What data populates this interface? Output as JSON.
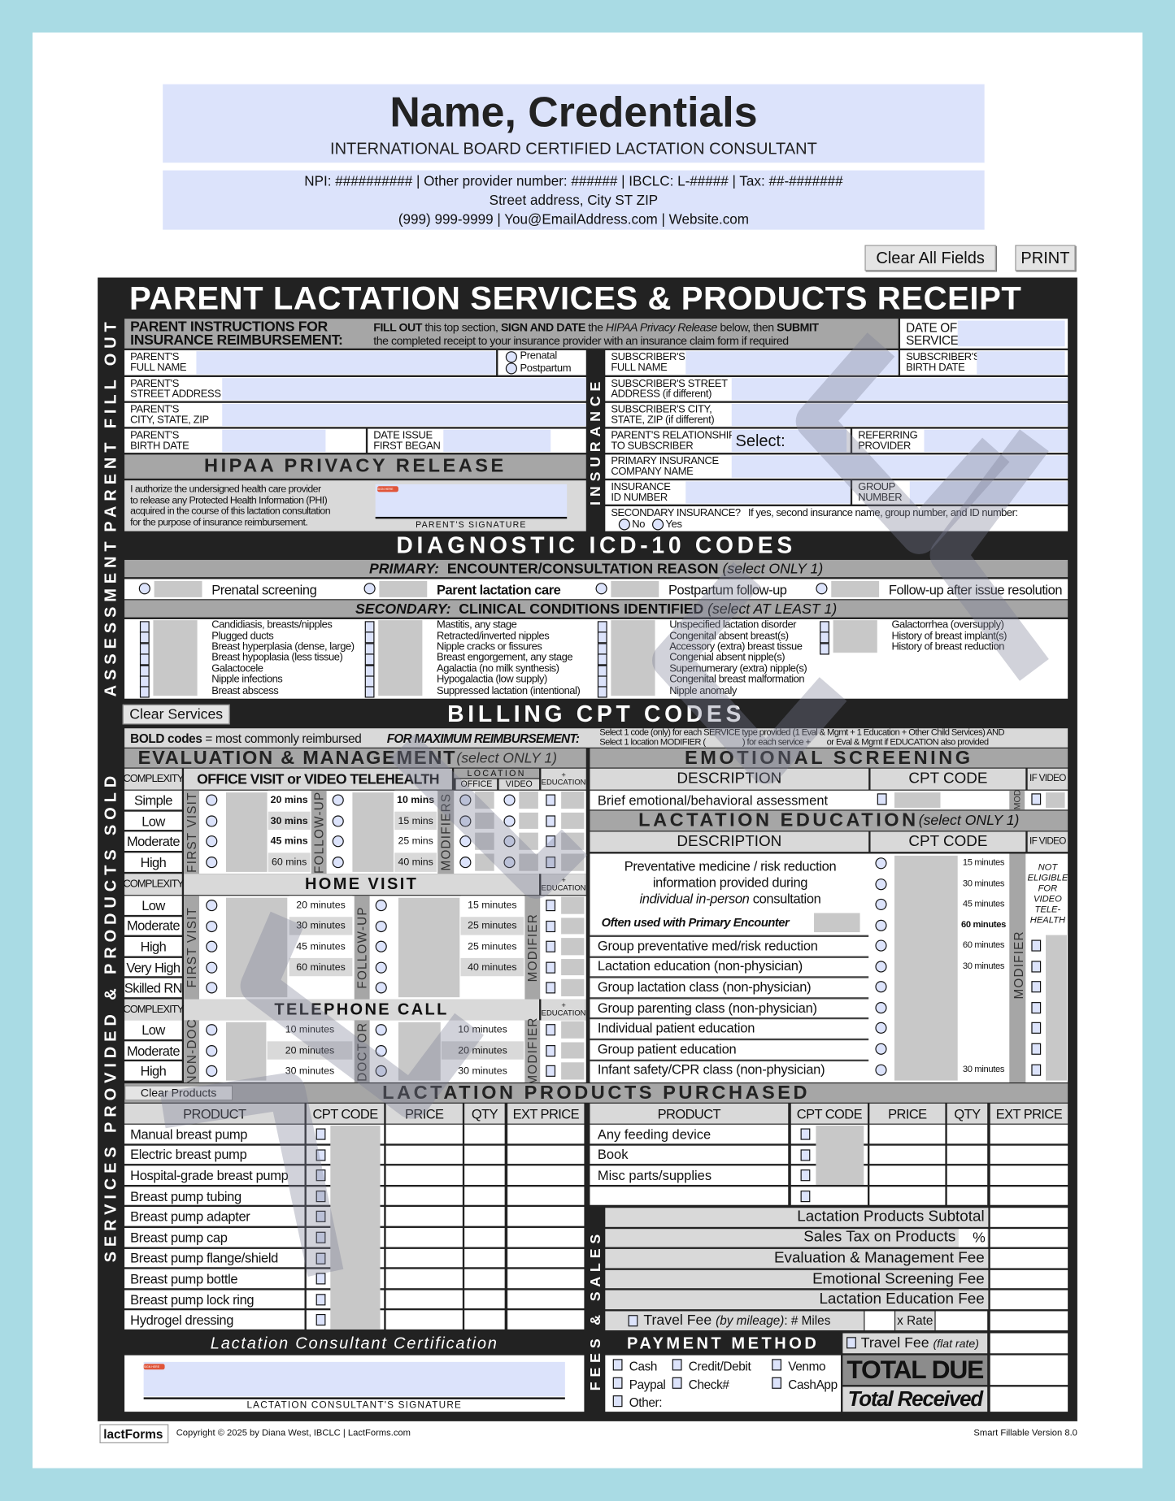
{
  "header": {
    "name": "Name, Credentials",
    "title": "INTERNATIONAL BOARD CERTIFIED LACTATION CONSULTANT",
    "line1": "NPI: ########## | Other provider number: ###### | IBCLC: L-##### | Tax: ##-#######",
    "line2": "Street address, City ST ZIP",
    "line3": "(999) 999-9999 | You@EmailAddress.com | Website.com"
  },
  "toolbar": {
    "clear_all": "Clear All Fields",
    "print": "PRINT"
  },
  "form": {
    "title": "PARENT LACTATION SERVICES & PRODUCTS RECEIPT",
    "side_labels": {
      "parent": "PARENT FILL OUT",
      "assessment": "ASSESSMENT",
      "services": "SERVICES PROVIDED & PRODUCTS SOLD",
      "insurance": "INSURANCE",
      "fees": "FEES & SALES"
    }
  },
  "parent": {
    "instructions_heading": "PARENT INSTRUCTIONS FOR\nINSURANCE REIMBURSEMENT:",
    "instructions": [
      "FILL OUT",
      " this top section, ",
      "SIGN AND DATE",
      " the ",
      "HIPAA Privacy Release",
      " below, then ",
      "SUBMIT",
      "the completed receipt to your insurance provider with an insurance claim form if required"
    ],
    "date_of_service": "DATE OF\nSERVICE",
    "full_name": "PARENT'S\nFULL NAME",
    "prenatal": "Prenatal",
    "postpartum": "Postpartum",
    "street": "PARENT'S\nSTREET ADDRESS",
    "city": "PARENT'S\nCITY, STATE, ZIP",
    "birth_date": "PARENT'S\nBIRTH DATE",
    "issue_began": "DATE ISSUE\nFIRST BEGAN",
    "hipaa_title": "HIPAA PRIVACY RELEASE",
    "hipaa_text": "I authorize the undersigned health care provider\nto release any Protected Health Information (PHI)\nacquired in the course of this lactation consultation\nfor the purpose of insurance reimbursement.",
    "signature_label": "PARENT'S SIGNATURE",
    "sign_here": "SIGN HERE"
  },
  "insurance": {
    "subscriber_name": "SUBSCRIBER'S\nFULL NAME",
    "subscriber_birth": "SUBSCRIBER'S\nBIRTH DATE",
    "subscriber_street": "SUBSCRIBER'S STREET\nADDRESS (if different)",
    "subscriber_city": "SUBSCRIBER'S CITY,\nSTATE, ZIP (if different)",
    "relationship": "PARENT'S RELATIONSHIP\nTO SUBSCRIBER",
    "relationship_value": "Select:",
    "referring": "REFERRING\nPROVIDER",
    "company": "PRIMARY INSURANCE\nCOMPANY NAME",
    "id_number": "INSURANCE\nID NUMBER",
    "group_number": "GROUP\nNUMBER",
    "secondary": "SECONDARY INSURANCE?   If yes, second insurance name, group number, and ID number:",
    "no": "No",
    "yes": "Yes"
  },
  "icd": {
    "title": "DIAGNOSTIC ICD-10 CODES",
    "primary_header": [
      "PRIMARY:",
      "  ENCOUNTER/CONSULTATION REASON ",
      "(select ONLY 1)"
    ],
    "primary_options": [
      "Prenatal screening",
      "Parent lactation care",
      "Postpartum follow-up",
      "Follow-up after issue resolution"
    ],
    "secondary_header": [
      "SECONDARY:",
      "  CLINICAL CONDITIONS IDENTIFIED ",
      "(select AT LEAST 1)"
    ],
    "secondary_columns": [
      [
        "Candidiasis, breasts/nipples",
        "Plugged ducts",
        "Breast hyperplasia (dense, large)",
        "Breast hypoplasia (less tissue)",
        "Galactocele",
        "Nipple infections",
        "Breast abscess"
      ],
      [
        "Mastitis, any stage",
        "Retracted/inverted nipples",
        "Nipple cracks or fissures",
        "Breast engorgement, any stage",
        "Agalactia (no milk synthesis)",
        "Hypogalactia (low supply)",
        "Suppressed lactation (intentional)"
      ],
      [
        "Unspecified lactation disorder",
        "Congenital absent breast(s)",
        "Accessory (extra) breast tissue",
        "Congenial absent nipple(s)",
        "Supernumerary (extra) nipple(s)",
        "Congenital breast malformation",
        "Nipple anomaly"
      ],
      [
        "Galactorrhea (oversupply)",
        "History of breast implant(s)",
        "History of breast reduction"
      ]
    ]
  },
  "billing": {
    "title": "BILLING CPT CODES",
    "clear_services": "Clear Services",
    "bold_note": [
      "BOLD codes",
      " = most commonly reimbursed"
    ],
    "max_label": "FOR MAXIMUM REIMBURSEMENT:",
    "max_text_1": "Select 1 code (only) for each SERVICE type provided (1 Eval & Mgmt + 1 Education + Other Child Services) AND",
    "max_text_2": "Select 1 location MODIFIER (                  ) for each service +        or Eval & Mgmt if EDUCATION also provided"
  },
  "em": {
    "title": "EVALUATION & MANAGEMENT",
    "select_note": "(select ONLY 1)",
    "complexity": "COMPLEXITY",
    "education": "+\nEDUCATION",
    "office": {
      "title": "OFFICE VISIT or VIDEO TELEHEALTH",
      "location": "LOCATION",
      "loc_office": "OFFICE",
      "loc_video": "VIDEO",
      "first_label": "FIRST VISIT",
      "follow_label": "FOLLOW-UP",
      "modifiers_label": "MODIFIERS",
      "rows": [
        {
          "complexity": "Simple",
          "first": "20 mins",
          "follow": "10 mins"
        },
        {
          "complexity": "Low",
          "first": "30 mins",
          "follow": "15 mins"
        },
        {
          "complexity": "Moderate",
          "first": "45 mins",
          "follow": "25 mins"
        },
        {
          "complexity": "High",
          "first": "60 mins",
          "follow": "40 mins"
        }
      ]
    },
    "home": {
      "title": "HOME VISIT",
      "first_label": "FIRST VISIT",
      "follow_label": "FOLLOW-UP",
      "modifier_label": "MODIFIER",
      "rows": [
        {
          "complexity": "Low",
          "first": "20 minutes",
          "follow": "15 minutes"
        },
        {
          "complexity": "Moderate",
          "first": "30 minutes",
          "follow": "25 minutes"
        },
        {
          "complexity": "High",
          "first": "45 minutes",
          "follow": "25 minutes"
        },
        {
          "complexity": "Very High",
          "first": "60 minutes",
          "follow": "40 minutes"
        },
        {
          "complexity": "Skilled RN",
          "first": "",
          "follow": ""
        }
      ]
    },
    "phone": {
      "title": "TELEPHONE CALL",
      "first_label": "NON-DOC",
      "follow_label": "DOCTOR",
      "modifier_label": "MODIFIER",
      "rows": [
        {
          "complexity": "Low",
          "first": "10 minutes",
          "follow": "10 minutes"
        },
        {
          "complexity": "Moderate",
          "first": "20 minutes",
          "follow": "20 minutes"
        },
        {
          "complexity": "High",
          "first": "30 minutes",
          "follow": "30 minutes"
        }
      ]
    }
  },
  "emotional": {
    "title": "EMOTIONAL SCREENING",
    "description": "DESCRIPTION",
    "cpt": "CPT CODE",
    "if_video": "IF VIDEO",
    "mod": "MOD",
    "item": "Brief emotional/behavioral assessment"
  },
  "education": {
    "title": "LACTATION EDUCATION",
    "select_note": "(select ONLY 1)",
    "description": "DESCRIPTION",
    "cpt": "CPT CODE",
    "if_video": "IF VIDEO",
    "modifier": "MODIFIER",
    "block_text": [
      "Preventative medicine / risk reduction",
      "information provided during",
      "individual in-person",
      " consultation"
    ],
    "block_note": "Often used with Primary Encounter",
    "not_eligible": "NOT\nELIGIBLE\nFOR\nVIDEO\nTELE-\nHEALTH",
    "block_minutes": [
      "15 minutes",
      "30 minutes",
      "45 minutes",
      "60 minutes"
    ],
    "items": [
      {
        "label": "Group preventative med/risk reduction",
        "minutes": "60 minutes"
      },
      {
        "label": "Lactation education (non-physician)",
        "minutes": "30 minutes"
      },
      {
        "label": "Group lactation class (non-physician)",
        "minutes": ""
      },
      {
        "label": "Group parenting class (non-physician)",
        "minutes": ""
      },
      {
        "label": "Individual patient education",
        "minutes": ""
      },
      {
        "label": "Group patient education",
        "minutes": ""
      },
      {
        "label": "Infant safety/CPR class (non-physician)",
        "minutes": "30 minutes"
      }
    ]
  },
  "products": {
    "title": "LACTATION PRODUCTS PURCHASED",
    "clear": "Clear Products",
    "columns": [
      "PRODUCT",
      "CPT CODE",
      "PRICE",
      "QTY",
      "EXT PRICE"
    ],
    "left": [
      "Manual breast pump",
      "Electric breast pump",
      "Hospital-grade breast pump",
      "Breast pump tubing",
      "Breast pump adapter",
      "Breast pump cap",
      "Breast pump flange/shield",
      "Breast pump bottle",
      "Breast pump lock ring",
      "Hydrogel dressing"
    ],
    "right": [
      "Any feeding device",
      "Book",
      "Misc parts/supplies",
      ""
    ]
  },
  "fees": {
    "rows": [
      "Lactation Products Subtotal",
      "Sales Tax on Products",
      "Evaluation & Management Fee",
      "Emotional Screening Fee",
      "Lactation Education Fee"
    ],
    "percent": "%",
    "travel_mileage": [
      "Travel Fee ",
      "(by mileage)",
      ": # Miles"
    ],
    "x_rate": "x Rate",
    "travel_flat": [
      "Travel Fee ",
      "(flat rate)"
    ],
    "payment_title": "PAYMENT METHOD",
    "payment_methods": [
      "Cash",
      "Credit/Debit",
      "Venmo",
      "Paypal",
      "Check#",
      "CashApp",
      "Other:"
    ],
    "total_due": "TOTAL DUE",
    "total_received": "Total Received"
  },
  "certification": {
    "title": "Lactation Consultant Certification",
    "signature_label": "LACTATION CONSULTANT'S SIGNATURE",
    "sign_here": "SIGN HERE"
  },
  "footer": {
    "logo": "lactForms",
    "copyright": "Copyright © 2025 by Diana West, IBCLC  |  LactForms.com",
    "version": "Smart Fillable Version 8.0"
  }
}
